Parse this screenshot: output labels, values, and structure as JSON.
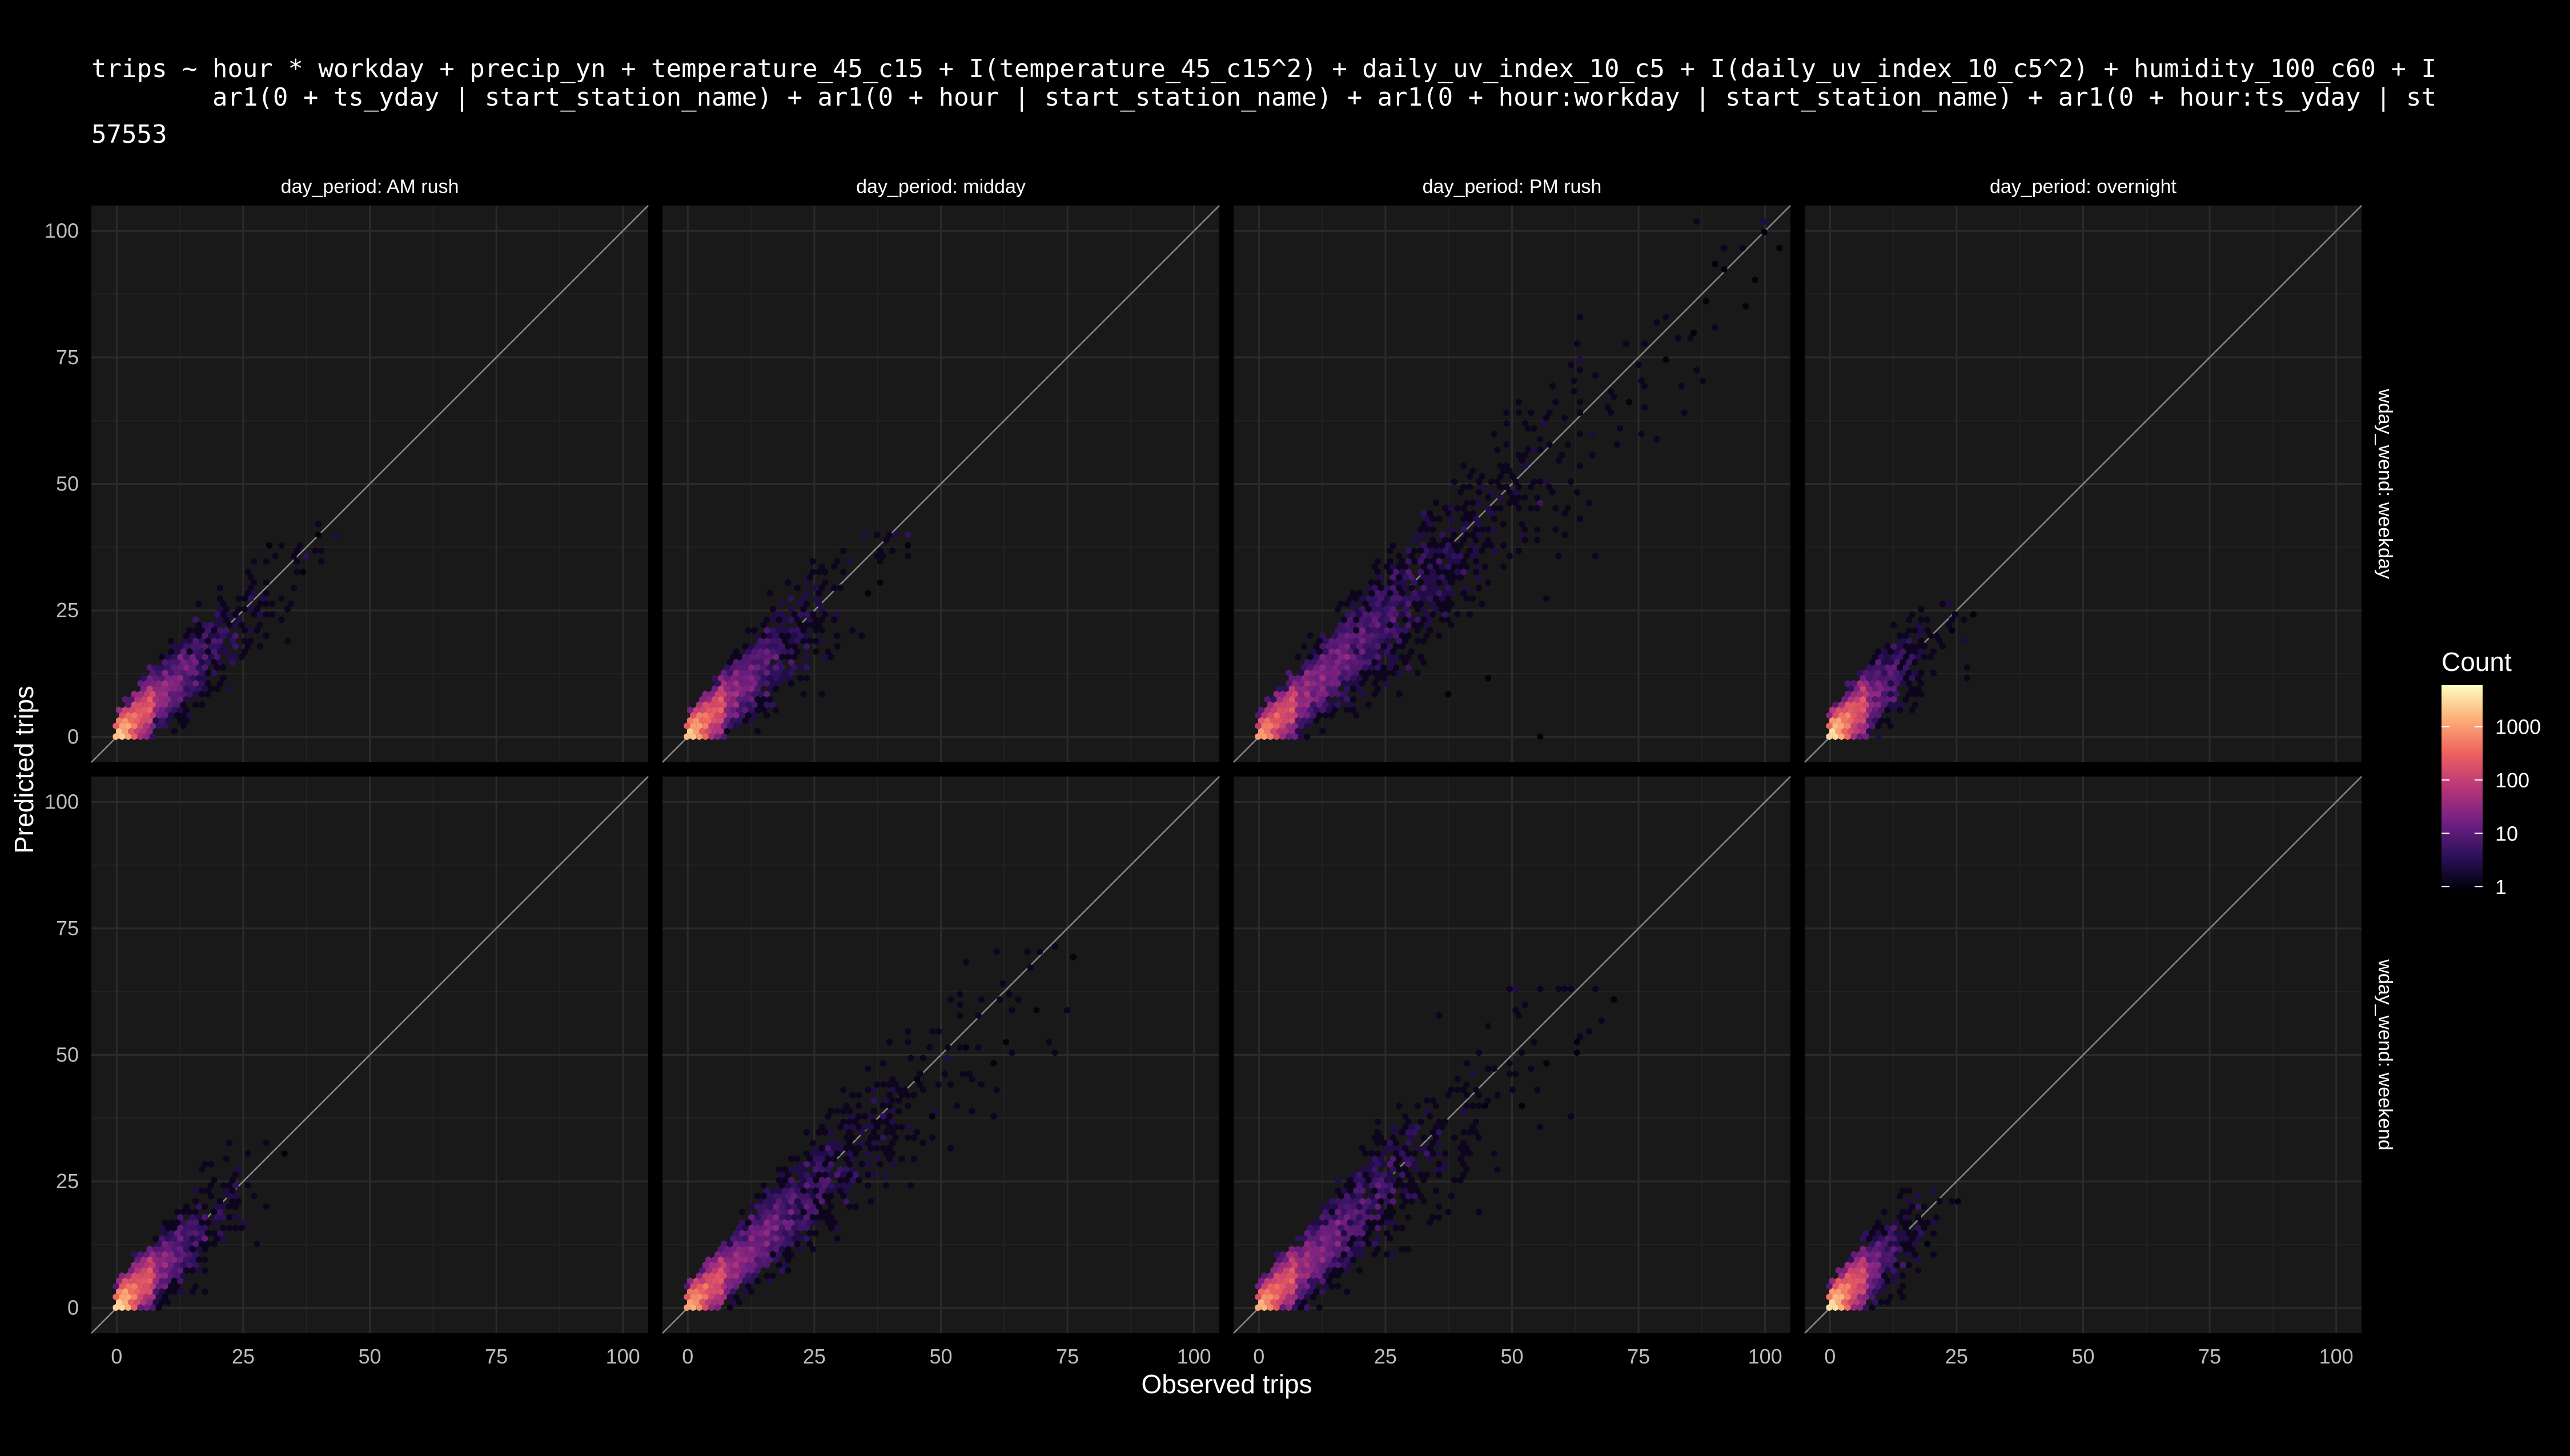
{
  "header": {
    "formula_line1": "trips ~ hour * workday + precip_yn + temperature_45_c15 + I(temperature_45_c15^2) + daily_uv_index_10_c5 + I(daily_uv_index_10_c5^2) + humidity_100_c60 + I",
    "formula_line2": "        ar1(0 + ts_yday | start_station_name) + ar1(0 + hour | start_station_name) + ar1(0 + hour:workday | start_station_name) + ar1(0 + hour:ts_yday | st",
    "count": "57553"
  },
  "colors": {
    "background": "#000000",
    "panel": "#191919",
    "grid_major": "#2b2b2b",
    "grid_minor": "#222222",
    "identity_line": "#8c8c8c",
    "scale": [
      "#000004",
      "#2c105c",
      "#711f81",
      "#b63679",
      "#ee605e",
      "#fdae78",
      "#fcfdbf"
    ]
  },
  "chart_data": {
    "type": "hexbin",
    "xlabel": "Observed trips",
    "ylabel": "Predicted trips",
    "xlim": [
      -5,
      105
    ],
    "ylim": [
      -5,
      105
    ],
    "xticks": [
      0,
      25,
      50,
      75,
      100
    ],
    "yticks": [
      0,
      25,
      50,
      75,
      100
    ],
    "tick_labels": [
      "0",
      "25",
      "50",
      "75",
      "100"
    ],
    "reference_line": "y = x",
    "facet_cols": [
      "day_period: AM rush",
      "day_period: midday",
      "day_period: PM rush",
      "day_period: overnight"
    ],
    "facet_rows": [
      "wday_wend: weekday",
      "wday_wend: weekend"
    ],
    "legend": {
      "title": "Count",
      "scale": "log10",
      "breaks": [
        1,
        10,
        100,
        1000
      ],
      "labels": [
        "1",
        "10",
        "100",
        "1000"
      ],
      "position": "right"
    },
    "panels": [
      {
        "row": 0,
        "col": 0,
        "facet": "AM rush / weekday",
        "max_observed": 44,
        "max_predicted": 40,
        "spread": 0.14,
        "outliers": [
          [
            40,
            40
          ],
          [
            37,
            33
          ],
          [
            30,
            38
          ],
          [
            44,
            40
          ]
        ]
      },
      {
        "row": 0,
        "col": 1,
        "facet": "midday / weekday",
        "max_observed": 45,
        "max_predicted": 38,
        "spread": 0.16,
        "outliers": [
          [
            43,
            38
          ],
          [
            38,
            30
          ],
          [
            35,
            28
          ]
        ]
      },
      {
        "row": 0,
        "col": 2,
        "facet": "PM rush / weekday",
        "max_observed": 104,
        "max_predicted": 100,
        "spread": 0.15,
        "outliers": [
          [
            100,
            100
          ],
          [
            103,
            97
          ],
          [
            98,
            90
          ],
          [
            92,
            92
          ],
          [
            96,
            85
          ],
          [
            86,
            80
          ],
          [
            90,
            93
          ],
          [
            45,
            12
          ],
          [
            55,
            0
          ],
          [
            37,
            8
          ],
          [
            66,
            60
          ],
          [
            73,
            66
          ],
          [
            80,
            75
          ],
          [
            88,
            86
          ]
        ]
      },
      {
        "row": 0,
        "col": 3,
        "facet": "overnight / weekday",
        "max_observed": 28,
        "max_predicted": 24,
        "spread": 0.17,
        "outliers": [
          [
            28,
            24
          ],
          [
            24,
            21
          ],
          [
            26,
            19
          ]
        ]
      },
      {
        "row": 1,
        "col": 0,
        "facet": "AM rush / weekend",
        "max_observed": 33,
        "max_predicted": 31,
        "spread": 0.16,
        "outliers": [
          [
            33,
            31
          ],
          [
            22,
            23
          ],
          [
            21,
            18
          ]
        ]
      },
      {
        "row": 1,
        "col": 1,
        "facet": "midday / weekend",
        "max_observed": 76,
        "max_predicted": 69,
        "spread": 0.14,
        "outliers": [
          [
            76,
            69
          ],
          [
            69,
            59
          ],
          [
            60,
            48
          ],
          [
            63,
            53
          ],
          [
            55,
            51
          ],
          [
            48,
            38
          ],
          [
            45,
            45
          ]
        ]
      },
      {
        "row": 1,
        "col": 2,
        "facet": "PM rush / weekend",
        "max_observed": 70,
        "max_predicted": 61,
        "spread": 0.15,
        "outliers": [
          [
            70,
            61
          ],
          [
            63,
            53
          ],
          [
            63,
            50
          ],
          [
            57,
            48
          ],
          [
            52,
            40
          ],
          [
            45,
            40
          ]
        ]
      },
      {
        "row": 1,
        "col": 3,
        "facet": "overnight / weekend",
        "max_observed": 25,
        "max_predicted": 21,
        "spread": 0.18,
        "outliers": [
          [
            25,
            21
          ],
          [
            19,
            13
          ],
          [
            17,
            16
          ]
        ]
      }
    ]
  }
}
